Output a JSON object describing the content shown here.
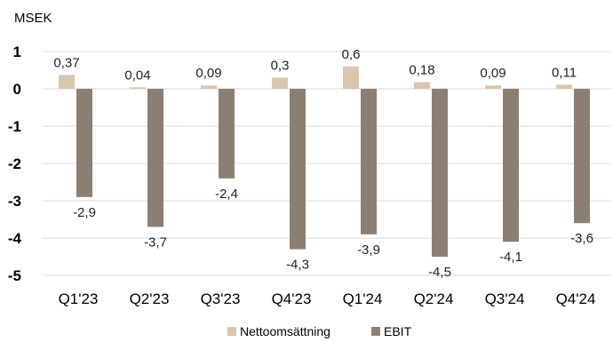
{
  "chart_data": {
    "type": "bar",
    "unit_label": "MSEK",
    "categories": [
      "Q1'23",
      "Q2'23",
      "Q3'23",
      "Q4'23",
      "Q1'24",
      "Q2'24",
      "Q3'24",
      "Q4'24"
    ],
    "series": [
      {
        "name": "Nettoomsättning",
        "values": [
          0.37,
          0.04,
          0.09,
          0.3,
          0.6,
          0.18,
          0.09,
          0.11
        ],
        "labels": [
          "0,37",
          "0,04",
          "0,09",
          "0,3",
          "0,6",
          "0,18",
          "0,09",
          "0,11"
        ],
        "color": "#d9c6ae"
      },
      {
        "name": "EBIT",
        "values": [
          -2.9,
          -3.7,
          -2.4,
          -4.3,
          -3.9,
          -4.5,
          -4.1,
          -3.6
        ],
        "labels": [
          "-2,9",
          "-3,7",
          "-2,4",
          "-4,3",
          "-3,9",
          "-4,5",
          "-4,1",
          "-3,6"
        ],
        "color": "#8b7f74"
      }
    ],
    "y_ticks": [
      1,
      0,
      -1,
      -2,
      -3,
      -4,
      -5
    ],
    "y_tick_labels": [
      "1",
      "0",
      "-1",
      "-2",
      "-3",
      "-4",
      "-5"
    ],
    "ylim": [
      -5,
      1
    ],
    "grid": true,
    "legend_position": "bottom"
  }
}
